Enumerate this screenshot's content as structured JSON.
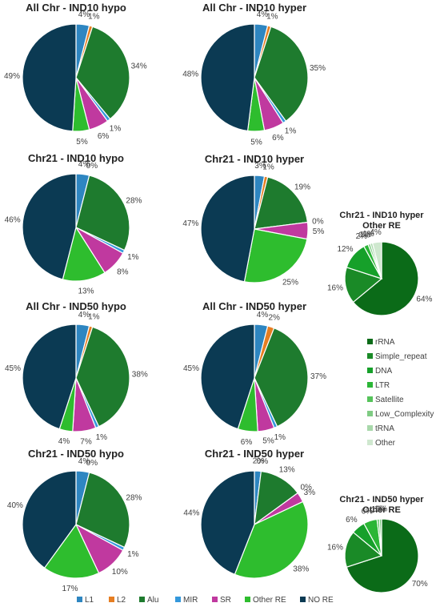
{
  "legend_bottom": {
    "items": [
      {
        "label": "L1",
        "color": "#2e86c1"
      },
      {
        "label": "L2",
        "color": "#e67e22"
      },
      {
        "label": "Alu",
        "color": "#1e7b2e"
      },
      {
        "label": "MIR",
        "color": "#3498db"
      },
      {
        "label": "SR",
        "color": "#c0399f"
      },
      {
        "label": "Other RE",
        "color": "#2ebd2e"
      },
      {
        "label": "NO RE",
        "color": "#0b3a53"
      }
    ]
  },
  "legend_right": {
    "items": [
      {
        "label": "rRNA",
        "color": "#0b6b18"
      },
      {
        "label": "Simple_repeat",
        "color": "#1a8a27"
      },
      {
        "label": "DNA",
        "color": "#16a02a"
      },
      {
        "label": "LTR",
        "color": "#2bb636"
      },
      {
        "label": "Satellite",
        "color": "#55c35a"
      },
      {
        "label": "Low_Complexity",
        "color": "#7fcb83"
      },
      {
        "label": "tRNA",
        "color": "#a8d8aa"
      },
      {
        "label": "Other",
        "color": "#cfe8cf"
      }
    ]
  },
  "chart_data": [
    {
      "type": "pie",
      "title": "All Chr - IND10 hypo",
      "labels": [
        "L1",
        "L2",
        "Alu",
        "MIR",
        "SR",
        "Other RE",
        "NO RE"
      ],
      "values": [
        4,
        1,
        34,
        1,
        6,
        5,
        49
      ],
      "value_labels": [
        "4%",
        "1%",
        "34%",
        "1%",
        "6%",
        "5%",
        "49%"
      ]
    },
    {
      "type": "pie",
      "title": "All Chr - IND10 hyper",
      "labels": [
        "L1",
        "L2",
        "Alu",
        "MIR",
        "SR",
        "Other RE",
        "NO RE"
      ],
      "values": [
        4,
        1,
        35,
        1,
        6,
        5,
        48
      ],
      "value_labels": [
        "4%",
        "1%",
        "35%",
        "1%",
        "6%",
        "5%",
        "48%"
      ]
    },
    {
      "type": "pie",
      "title": "Chr21 - IND10 hypo",
      "labels": [
        "L1",
        "L2",
        "Alu",
        "MIR",
        "SR",
        "Other RE",
        "NO RE"
      ],
      "values": [
        4,
        0,
        28,
        1,
        8,
        13,
        46
      ],
      "value_labels": [
        "4%",
        "0%",
        "28%",
        "1%",
        "8%",
        "13%",
        "46%"
      ]
    },
    {
      "type": "pie",
      "title": "Chr21 - IND10 hyper",
      "labels": [
        "L1",
        "L2",
        "Alu",
        "MIR",
        "SR",
        "Other RE",
        "NO RE"
      ],
      "values": [
        3,
        1,
        19,
        0,
        5,
        25,
        47
      ],
      "value_labels": [
        "3%",
        "1%",
        "19%",
        "0%",
        "5%",
        "25%",
        "47%"
      ]
    },
    {
      "type": "pie",
      "title": "All Chr - IND50 hypo",
      "labels": [
        "L1",
        "L2",
        "Alu",
        "MIR",
        "SR",
        "Other RE",
        "NO RE"
      ],
      "values": [
        4,
        1,
        38,
        1,
        7,
        4,
        45
      ],
      "value_labels": [
        "4%",
        "1%",
        "38%",
        "1%",
        "7%",
        "4%",
        "45%"
      ]
    },
    {
      "type": "pie",
      "title": "All Chr - IND50 hyper",
      "labels": [
        "L1",
        "L2",
        "Alu",
        "MIR",
        "SR",
        "Other RE",
        "NO RE"
      ],
      "values": [
        4,
        2,
        37,
        1,
        5,
        6,
        45
      ],
      "value_labels": [
        "4%",
        "2%",
        "37%",
        "1%",
        "5%",
        "6%",
        "45%"
      ]
    },
    {
      "type": "pie",
      "title": "Chr21 - IND50 hypo",
      "labels": [
        "L1",
        "L2",
        "Alu",
        "MIR",
        "SR",
        "Other RE",
        "NO RE"
      ],
      "values": [
        4,
        0,
        28,
        1,
        10,
        17,
        40
      ],
      "value_labels": [
        "4%",
        "0%",
        "28%",
        "1%",
        "10%",
        "17%",
        "40%"
      ]
    },
    {
      "type": "pie",
      "title": "Chr21 - IND50 hyper",
      "labels": [
        "L1",
        "L2",
        "Alu",
        "MIR",
        "SR",
        "Other RE",
        "NO RE"
      ],
      "values": [
        2,
        0,
        13,
        0,
        3,
        38,
        44
      ],
      "value_labels": [
        "2%",
        "0%",
        "13%",
        "0%",
        "3%",
        "38%",
        "44%"
      ]
    },
    {
      "type": "pie",
      "title": "Chr21 - IND10 hyper\nOther RE",
      "labels": [
        "rRNA",
        "Simple_repeat",
        "DNA",
        "LTR",
        "Satellite",
        "Low_Complexity",
        "tRNA",
        "Other"
      ],
      "values": [
        64,
        16,
        12,
        2,
        0,
        1,
        1,
        4
      ],
      "value_labels": [
        "64%",
        "16%",
        "12%",
        "2%",
        "0%",
        "1%",
        "1%",
        "4%"
      ]
    },
    {
      "type": "pie",
      "title": "Chr21 - IND50 hyper\nOther RE",
      "labels": [
        "rRNA",
        "Simple_repeat",
        "DNA",
        "LTR",
        "Satellite",
        "Low_Complexity",
        "tRNA",
        "Other"
      ],
      "values": [
        70,
        16,
        6,
        6,
        1,
        1,
        0,
        0
      ],
      "value_labels": [
        "70%",
        "16%",
        "6%",
        "6%",
        "1%",
        "1%",
        "",
        "0%"
      ]
    }
  ]
}
